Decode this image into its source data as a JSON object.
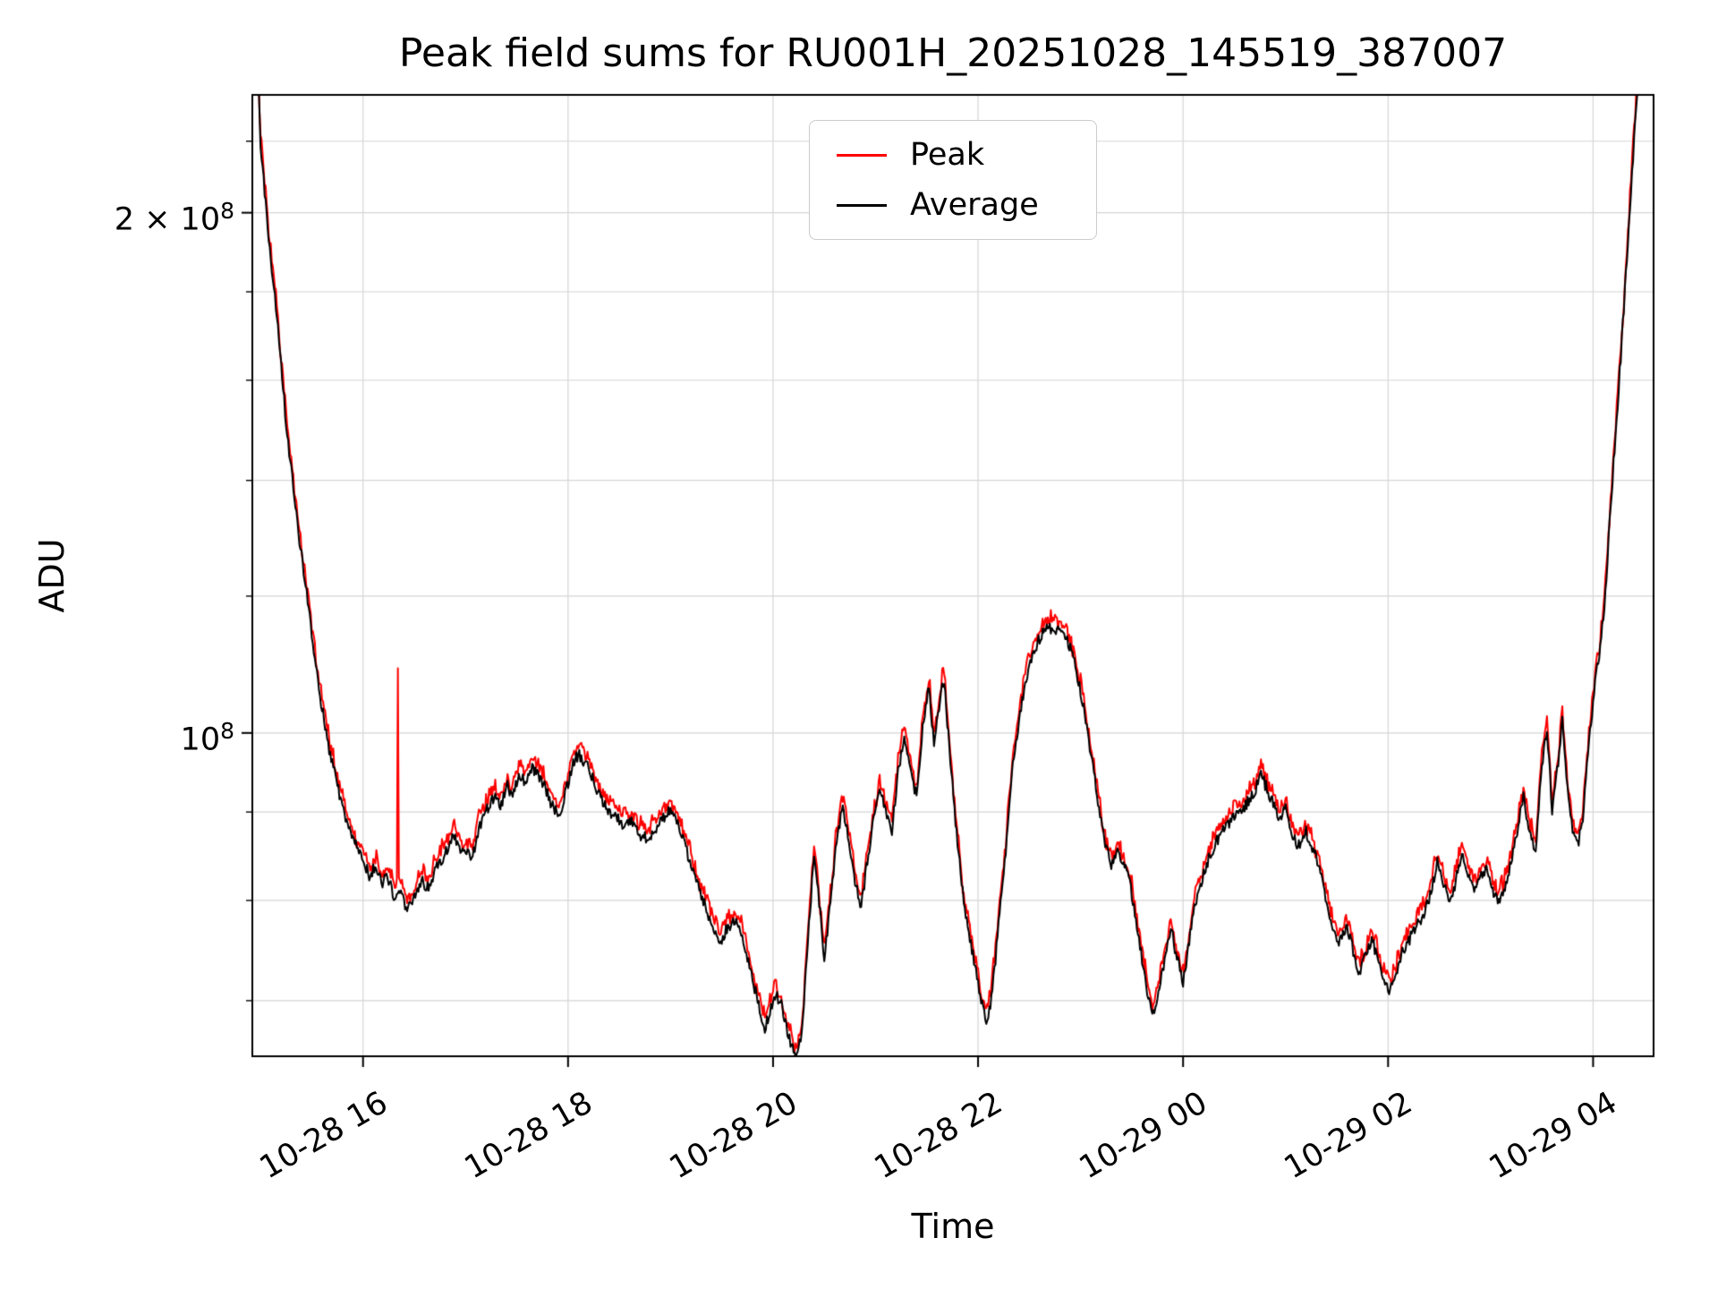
{
  "title": "Peak field sums for RU001H_20251028_145519_387007",
  "axes": {
    "xlabel": "Time",
    "ylabel": "ADU"
  },
  "legend": {
    "entries": [
      {
        "label": "Peak",
        "color": "#ff0000"
      },
      {
        "label": "Average",
        "color": "#000000"
      }
    ]
  },
  "chart_data": {
    "type": "line",
    "title": "Peak field sums for RU001H_20251028_145519_387007",
    "xlabel": "Time",
    "ylabel": "ADU",
    "y_scale": "log",
    "grid": true,
    "legend_position": "upper center",
    "x_unit": "hours since 2025-10-28 00:00",
    "value_units": "1e8 ADU",
    "x_range_hours": [
      14.92,
      28.59
    ],
    "y_range_e8": [
      0.65,
      2.34
    ],
    "x_ticks": [
      {
        "t": 16,
        "label": "10-28 16"
      },
      {
        "t": 18,
        "label": "10-28 18"
      },
      {
        "t": 20,
        "label": "10-28 20"
      },
      {
        "t": 22,
        "label": "10-28 22"
      },
      {
        "t": 24,
        "label": "10-29 00"
      },
      {
        "t": 26,
        "label": "10-29 02"
      },
      {
        "t": 28,
        "label": "10-29 04"
      }
    ],
    "y_major_ticks": [
      {
        "v_e8": 1.0,
        "mantissa": "10",
        "exponent": "8"
      },
      {
        "v_e8": 2.0,
        "mantissa": "2 × 10",
        "exponent": "8"
      }
    ],
    "y_minor_ticks_e8": [
      0.7,
      0.8,
      0.9,
      1.2,
      1.4,
      1.6,
      1.8,
      2.2
    ],
    "series": [
      {
        "name": "Peak",
        "color": "#ff0000",
        "spike_t_v_e8": [
          16.34,
          1.09
        ]
      },
      {
        "name": "Average",
        "color": "#000000",
        "anchors_t_v_e8": [
          [
            14.92,
            3.0
          ],
          [
            15.0,
            2.2
          ],
          [
            15.08,
            1.93
          ],
          [
            15.15,
            1.77
          ],
          [
            15.25,
            1.51
          ],
          [
            15.36,
            1.32
          ],
          [
            15.47,
            1.18
          ],
          [
            15.57,
            1.06
          ],
          [
            15.68,
            0.97
          ],
          [
            15.79,
            0.912
          ],
          [
            15.89,
            0.87
          ],
          [
            16.0,
            0.845
          ],
          [
            16.06,
            0.828
          ],
          [
            16.12,
            0.836
          ],
          [
            16.18,
            0.818
          ],
          [
            16.24,
            0.826
          ],
          [
            16.3,
            0.806
          ],
          [
            16.36,
            0.814
          ],
          [
            16.43,
            0.79
          ],
          [
            16.5,
            0.806
          ],
          [
            16.57,
            0.822
          ],
          [
            16.64,
            0.812
          ],
          [
            16.72,
            0.836
          ],
          [
            16.8,
            0.852
          ],
          [
            16.88,
            0.872
          ],
          [
            16.94,
            0.86
          ],
          [
            17.0,
            0.852
          ],
          [
            17.07,
            0.848
          ],
          [
            17.13,
            0.882
          ],
          [
            17.2,
            0.902
          ],
          [
            17.28,
            0.92
          ],
          [
            17.34,
            0.904
          ],
          [
            17.4,
            0.934
          ],
          [
            17.46,
            0.92
          ],
          [
            17.52,
            0.946
          ],
          [
            17.58,
            0.938
          ],
          [
            17.65,
            0.954
          ],
          [
            17.72,
            0.944
          ],
          [
            17.78,
            0.928
          ],
          [
            17.85,
            0.906
          ],
          [
            17.92,
            0.896
          ],
          [
            17.98,
            0.926
          ],
          [
            18.04,
            0.958
          ],
          [
            18.1,
            0.972
          ],
          [
            18.16,
            0.962
          ],
          [
            18.22,
            0.95
          ],
          [
            18.3,
            0.92
          ],
          [
            18.38,
            0.906
          ],
          [
            18.46,
            0.894
          ],
          [
            18.54,
            0.884
          ],
          [
            18.62,
            0.889
          ],
          [
            18.7,
            0.874
          ],
          [
            18.78,
            0.868
          ],
          [
            18.85,
            0.88
          ],
          [
            18.92,
            0.892
          ],
          [
            19.0,
            0.902
          ],
          [
            19.06,
            0.89
          ],
          [
            19.12,
            0.868
          ],
          [
            19.2,
            0.84
          ],
          [
            19.28,
            0.81
          ],
          [
            19.35,
            0.79
          ],
          [
            19.42,
            0.773
          ],
          [
            19.49,
            0.758
          ],
          [
            19.55,
            0.77
          ],
          [
            19.62,
            0.78
          ],
          [
            19.68,
            0.77
          ],
          [
            19.74,
            0.746
          ],
          [
            19.8,
            0.72
          ],
          [
            19.86,
            0.696
          ],
          [
            19.92,
            0.676
          ],
          [
            19.97,
            0.689
          ],
          [
            20.02,
            0.706
          ],
          [
            20.08,
            0.698
          ],
          [
            20.14,
            0.67
          ],
          [
            20.19,
            0.656
          ],
          [
            20.24,
            0.649
          ],
          [
            20.29,
            0.678
          ],
          [
            20.34,
            0.758
          ],
          [
            20.4,
            0.852
          ],
          [
            20.45,
            0.798
          ],
          [
            20.5,
            0.74
          ],
          [
            20.56,
            0.798
          ],
          [
            20.62,
            0.868
          ],
          [
            20.68,
            0.908
          ],
          [
            20.74,
            0.866
          ],
          [
            20.8,
            0.818
          ],
          [
            20.86,
            0.793
          ],
          [
            20.92,
            0.843
          ],
          [
            20.98,
            0.888
          ],
          [
            21.04,
            0.928
          ],
          [
            21.1,
            0.903
          ],
          [
            21.16,
            0.878
          ],
          [
            21.22,
            0.95
          ],
          [
            21.28,
            0.998
          ],
          [
            21.34,
            0.95
          ],
          [
            21.4,
            0.918
          ],
          [
            21.46,
            1.008
          ],
          [
            21.52,
            1.062
          ],
          [
            21.57,
            0.988
          ],
          [
            21.62,
            1.038
          ],
          [
            21.67,
            1.075
          ],
          [
            21.72,
            0.978
          ],
          [
            21.77,
            0.903
          ],
          [
            21.82,
            0.84
          ],
          [
            21.87,
            0.788
          ],
          [
            21.92,
            0.76
          ],
          [
            21.96,
            0.74
          ],
          [
            22.0,
            0.718
          ],
          [
            22.04,
            0.696
          ],
          [
            22.08,
            0.68
          ],
          [
            22.12,
            0.698
          ],
          [
            22.17,
            0.74
          ],
          [
            22.22,
            0.798
          ],
          [
            22.28,
            0.868
          ],
          [
            22.34,
            0.958
          ],
          [
            22.4,
            1.018
          ],
          [
            22.46,
            1.07
          ],
          [
            22.52,
            1.103
          ],
          [
            22.58,
            1.128
          ],
          [
            22.65,
            1.146
          ],
          [
            22.72,
            1.15
          ],
          [
            22.8,
            1.143
          ],
          [
            22.87,
            1.133
          ],
          [
            22.93,
            1.103
          ],
          [
            23.0,
            1.058
          ],
          [
            23.06,
            1.008
          ],
          [
            23.12,
            0.958
          ],
          [
            23.18,
            0.903
          ],
          [
            23.24,
            0.86
          ],
          [
            23.3,
            0.84
          ],
          [
            23.36,
            0.853
          ],
          [
            23.42,
            0.84
          ],
          [
            23.48,
            0.818
          ],
          [
            23.54,
            0.783
          ],
          [
            23.6,
            0.738
          ],
          [
            23.66,
            0.703
          ],
          [
            23.71,
            0.686
          ],
          [
            23.76,
            0.71
          ],
          [
            23.82,
            0.74
          ],
          [
            23.88,
            0.773
          ],
          [
            23.94,
            0.74
          ],
          [
            24.0,
            0.718
          ],
          [
            24.06,
            0.758
          ],
          [
            24.12,
            0.798
          ],
          [
            24.18,
            0.82
          ],
          [
            24.24,
            0.843
          ],
          [
            24.3,
            0.86
          ],
          [
            24.38,
            0.876
          ],
          [
            24.46,
            0.888
          ],
          [
            24.54,
            0.898
          ],
          [
            24.62,
            0.91
          ],
          [
            24.7,
            0.926
          ],
          [
            24.76,
            0.946
          ],
          [
            24.82,
            0.928
          ],
          [
            24.88,
            0.91
          ],
          [
            24.94,
            0.893
          ],
          [
            25.0,
            0.903
          ],
          [
            25.06,
            0.876
          ],
          [
            25.12,
            0.86
          ],
          [
            25.2,
            0.876
          ],
          [
            25.28,
            0.853
          ],
          [
            25.36,
            0.82
          ],
          [
            25.44,
            0.78
          ],
          [
            25.52,
            0.756
          ],
          [
            25.6,
            0.77
          ],
          [
            25.66,
            0.748
          ],
          [
            25.72,
            0.726
          ],
          [
            25.78,
            0.743
          ],
          [
            25.84,
            0.76
          ],
          [
            25.9,
            0.74
          ],
          [
            25.96,
            0.72
          ],
          [
            26.02,
            0.71
          ],
          [
            26.08,
            0.726
          ],
          [
            26.14,
            0.746
          ],
          [
            26.2,
            0.758
          ],
          [
            26.28,
            0.773
          ],
          [
            26.36,
            0.788
          ],
          [
            26.42,
            0.81
          ],
          [
            26.48,
            0.843
          ],
          [
            26.54,
            0.818
          ],
          [
            26.6,
            0.798
          ],
          [
            26.66,
            0.82
          ],
          [
            26.72,
            0.853
          ],
          [
            26.78,
            0.828
          ],
          [
            26.84,
            0.81
          ],
          [
            26.9,
            0.823
          ],
          [
            26.96,
            0.838
          ],
          [
            27.02,
            0.81
          ],
          [
            27.08,
            0.798
          ],
          [
            27.14,
            0.816
          ],
          [
            27.2,
            0.84
          ],
          [
            27.26,
            0.876
          ],
          [
            27.32,
            0.92
          ],
          [
            27.38,
            0.876
          ],
          [
            27.44,
            0.853
          ],
          [
            27.5,
            0.958
          ],
          [
            27.55,
            1.008
          ],
          [
            27.6,
            0.903
          ],
          [
            27.65,
            0.95
          ],
          [
            27.7,
            1.018
          ],
          [
            27.75,
            0.928
          ],
          [
            27.8,
            0.878
          ],
          [
            27.85,
            0.86
          ],
          [
            27.9,
            0.893
          ],
          [
            27.94,
            0.958
          ],
          [
            27.97,
            1.0
          ],
          [
            28.0,
            1.045
          ],
          [
            28.05,
            1.1
          ],
          [
            28.11,
            1.18
          ],
          [
            28.16,
            1.32
          ],
          [
            28.21,
            1.46
          ],
          [
            28.27,
            1.65
          ],
          [
            28.32,
            1.84
          ],
          [
            28.37,
            2.06
          ],
          [
            28.43,
            2.35
          ],
          [
            28.5,
            2.9
          ],
          [
            28.59,
            3.6
          ]
        ]
      }
    ],
    "render": {
      "step_hours": 0.01,
      "jitter_seed": 20251028,
      "avg_jitter": 0.008,
      "peak_base": 0.006,
      "peak_rand": 0.014,
      "colors": {
        "grid": "#d6d6d6",
        "spine": "#000000",
        "background": "#ffffff"
      }
    }
  }
}
